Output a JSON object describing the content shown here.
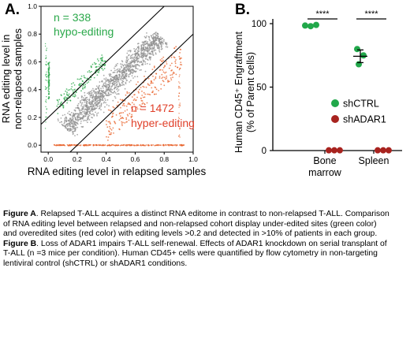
{
  "panel_a_label": "A.",
  "panel_b_label": "B.",
  "chart_data": [
    {
      "type": "scatter",
      "panel": "A",
      "xlabel": "RNA editing level in relapsed samples",
      "ylabel_line1": "RNA editing level in",
      "ylabel_line2": "non-relapsed samples",
      "xlim": [
        -0.05,
        1.0
      ],
      "ylim": [
        -0.05,
        1.0
      ],
      "x_ticks": [
        "0.0",
        "0.2",
        "0.4",
        "0.6",
        "0.8",
        "1.0"
      ],
      "y_ticks": [
        "0.0",
        "0.2",
        "0.4",
        "0.6",
        "0.8",
        "1.0"
      ],
      "threshold_lines": [
        {
          "x1": -0.05,
          "y1": 0.15,
          "x2": 0.8,
          "y2": 1.0
        },
        {
          "x1": 0.15,
          "y1": -0.05,
          "x2": 1.0,
          "y2": 0.8
        }
      ],
      "annotations": [
        {
          "count_text": "n = 338",
          "group_text": "hypo-editing",
          "color": "#2aa84a"
        },
        {
          "count_text": "n = 1472",
          "group_text": "hyper-editing",
          "color": "#e0402a"
        }
      ],
      "series_colors": {
        "not_significant": "#8f8f8f",
        "hypo": "#2aa84a",
        "hyper": "#e8622a"
      }
    },
    {
      "type": "scatter",
      "panel": "B",
      "ylabel_line1": "Human CD45⁺ Engraftment",
      "ylabel_line2": "(% of Parent cells)",
      "ylim": [
        0,
        100
      ],
      "y_ticks": [
        "0",
        "50",
        "100"
      ],
      "categories": [
        {
          "line1": "Bone",
          "line2": "marrow"
        },
        {
          "line1": "Spleen",
          "line2": ""
        }
      ],
      "series": [
        {
          "name": "shCTRL",
          "color": "#21a84a",
          "values": [
            [
              98.5,
              98.0,
              99.0
            ],
            [
              80.0,
              75.0,
              68.0
            ]
          ],
          "means": [
            98.5,
            74.3
          ]
        },
        {
          "name": "shADAR1",
          "color": "#a8231f",
          "values": [
            [
              0.2,
              0.2,
              0.2
            ],
            [
              0.2,
              0.2,
              0.2
            ]
          ],
          "means": [
            0.2,
            0.2
          ]
        }
      ],
      "significance": [
        "****",
        "****"
      ]
    }
  ],
  "caption": {
    "fig_a_bold": "Figure A",
    "fig_a_text": ". Relapsed T-ALL acquires a distinct RNA editome in contrast to non-relapsed T-ALL. Comparison of RNA editing level between relapsed and non-relapsed cohort display under-edited sites (green color) and overedited sites (red color) with editing levels >0.2 and detected in >10% of patients in each group. ",
    "fig_b_bold": "Figure B",
    "fig_b_text": ". Loss of ADAR1 impairs T-ALL self-renewal. Effects of ADAR1 knockdown on serial transplant of T-ALL (n =3 mice per condition). Human CD45+ cells were quantified by flow cytometry in non-targeting lentiviral control (shCTRL) or shADAR1 conditions."
  }
}
